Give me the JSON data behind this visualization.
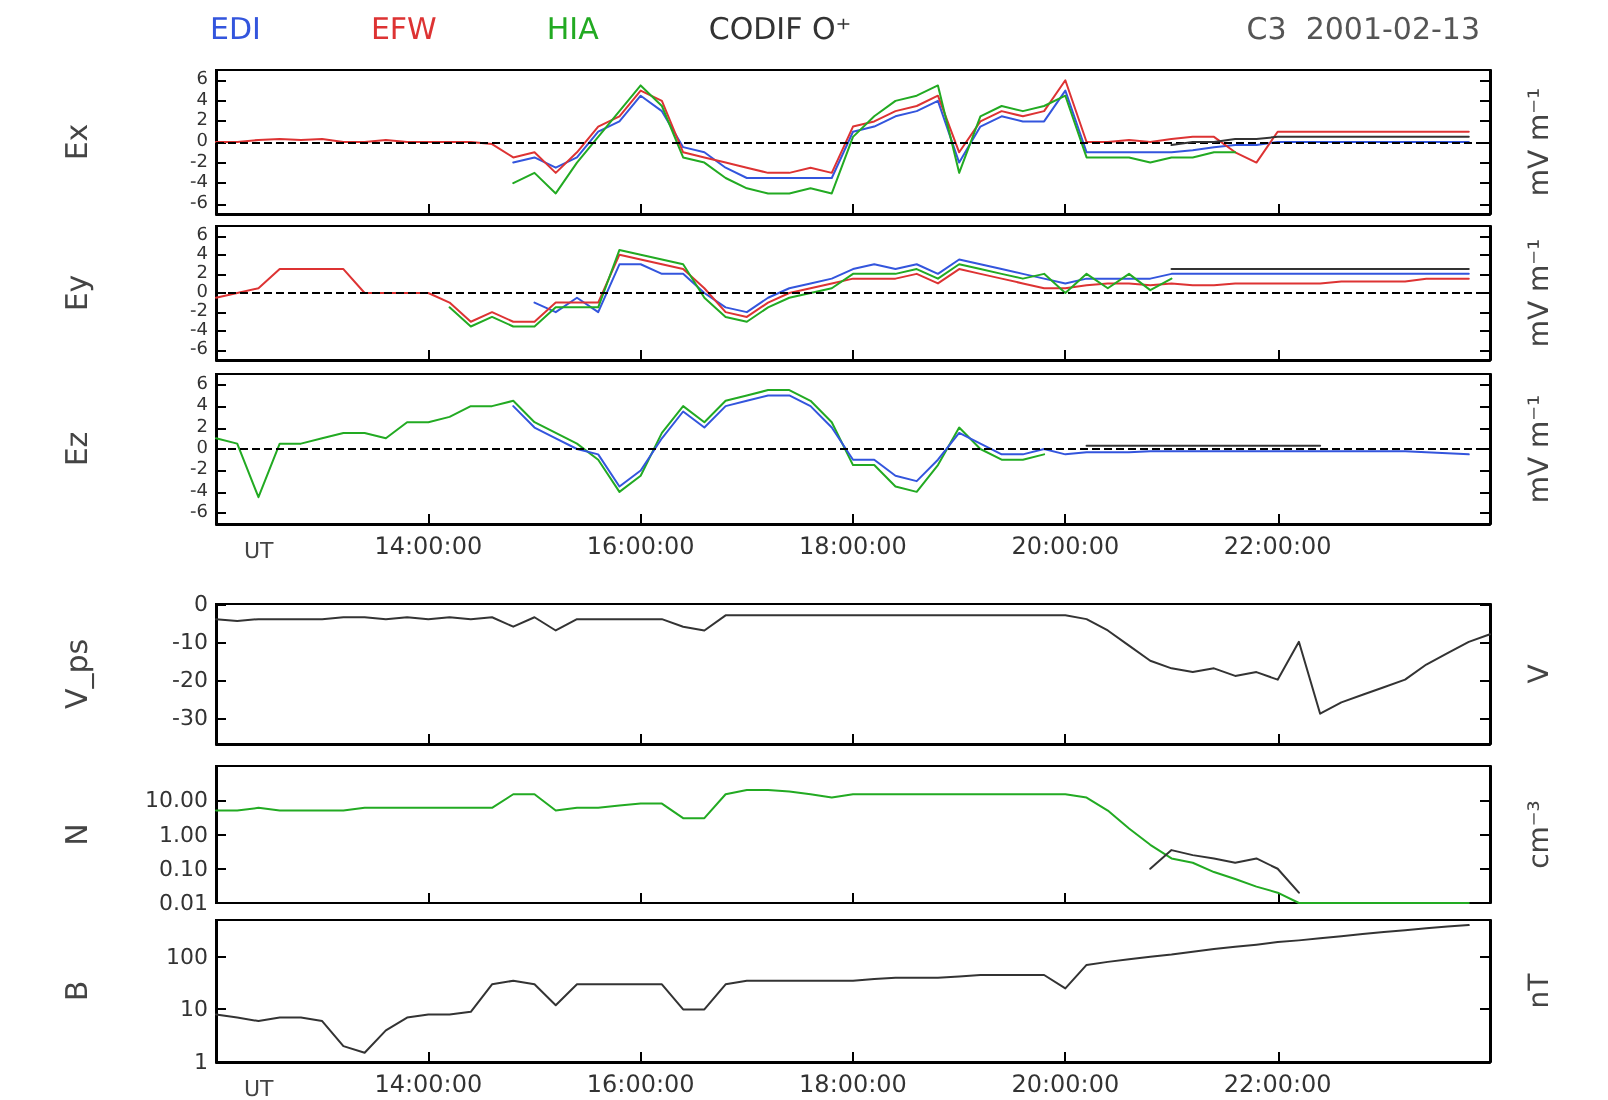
{
  "chart_data": [
    {
      "type": "line",
      "title": "C3  2001-02-13",
      "ylabel": "Ex",
      "y2label": "mV m⁻¹",
      "legend": "top",
      "tick_labels": "y",
      "xlim": [
        12,
        24
      ],
      "ylim": [
        -7,
        7
      ],
      "xticks": [
        14,
        16,
        18,
        20,
        22
      ],
      "yticks": [
        -6,
        -4,
        -2,
        0,
        2,
        4,
        6
      ],
      "ref_lines": [
        {
          "axis": "y",
          "value": 0,
          "color": "#000000",
          "line_style": "dashed"
        }
      ],
      "x": [
        12,
        12.2,
        12.4,
        12.6,
        12.8,
        13,
        13.2,
        13.4,
        13.6,
        13.8,
        14,
        14.2,
        14.4,
        14.6,
        14.8,
        15,
        15.2,
        15.4,
        15.6,
        15.8,
        16,
        16.2,
        16.4,
        16.6,
        16.8,
        17,
        17.2,
        17.4,
        17.6,
        17.8,
        18,
        18.2,
        18.4,
        18.6,
        18.8,
        19,
        19.2,
        19.4,
        19.6,
        19.8,
        20,
        20.2,
        20.4,
        20.6,
        20.8,
        21,
        21.2,
        21.4,
        21.6,
        21.8,
        22,
        22.2,
        22.4,
        22.6,
        22.8,
        23,
        23.2,
        23.4,
        23.6,
        23.8
      ],
      "series": [
        {
          "name": "EDI",
          "color": "#3355dd",
          "values": [
            null,
            null,
            null,
            null,
            null,
            null,
            null,
            null,
            null,
            null,
            null,
            null,
            null,
            null,
            -2,
            -1.5,
            -2.5,
            -1.5,
            1,
            2,
            4.5,
            3,
            -0.5,
            -1,
            -2.5,
            -3.5,
            -3.5,
            -3.5,
            -3.5,
            -3.5,
            1,
            1.5,
            2.5,
            3,
            4,
            -2,
            1.5,
            2.5,
            2,
            2,
            5,
            -1,
            -1,
            -1,
            -1,
            -1,
            -0.8,
            -0.5,
            -0.3,
            -0.3,
            0,
            0,
            0,
            0,
            0,
            0,
            0,
            0,
            0,
            0
          ]
        },
        {
          "name": "EFW",
          "color": "#dd3333",
          "values": [
            0,
            0,
            0.2,
            0.3,
            0.2,
            0.3,
            0,
            0,
            0.2,
            0,
            0,
            0,
            0,
            -0.2,
            -1.5,
            -1,
            -3,
            -1,
            1.5,
            2.5,
            5,
            4,
            -1,
            -1.5,
            -2,
            -2.5,
            -3,
            -3,
            -2.5,
            -3,
            1.5,
            2,
            3,
            3.5,
            4.5,
            -1,
            2,
            3,
            2.5,
            3,
            6,
            0,
            0,
            0.2,
            0,
            0.3,
            0.5,
            0.5,
            -1,
            -2,
            1,
            1,
            1,
            1,
            1,
            1,
            1,
            1,
            1,
            1
          ]
        },
        {
          "name": "HIA",
          "color": "#22aa22",
          "values": [
            null,
            null,
            null,
            null,
            null,
            null,
            null,
            null,
            null,
            null,
            null,
            null,
            null,
            null,
            -4,
            -3,
            -5,
            -2,
            0.5,
            3,
            5.5,
            3.5,
            -1.5,
            -2,
            -3.5,
            -4.5,
            -5,
            -5,
            -4.5,
            -5,
            0.5,
            2.5,
            4,
            4.5,
            5.5,
            -3,
            2.5,
            3.5,
            3,
            3.5,
            4.5,
            -1.5,
            -1.5,
            -1.5,
            -2,
            -1.5,
            -1.5,
            -1,
            -1,
            null,
            null,
            null,
            null,
            null,
            null,
            null,
            null,
            null,
            null,
            null
          ]
        },
        {
          "name": "CODIF O⁺",
          "color": "#333333",
          "values": [
            null,
            null,
            null,
            null,
            null,
            null,
            null,
            null,
            null,
            null,
            null,
            null,
            null,
            null,
            null,
            null,
            null,
            null,
            null,
            null,
            null,
            null,
            null,
            null,
            null,
            null,
            null,
            null,
            null,
            null,
            null,
            null,
            null,
            null,
            null,
            null,
            null,
            null,
            null,
            null,
            null,
            null,
            null,
            null,
            null,
            -0.3,
            0,
            0,
            0.3,
            0.3,
            0.5,
            0.5,
            0.5,
            0.5,
            0.5,
            0.5,
            0.5,
            0.5,
            0.5,
            0.5
          ]
        }
      ]
    },
    {
      "type": "line",
      "ylabel": "Ey",
      "y2label": "mV m⁻¹",
      "tick_labels": "y",
      "xlim": [
        12,
        24
      ],
      "ylim": [
        -7,
        7
      ],
      "xticks": [
        14,
        16,
        18,
        20,
        22
      ],
      "yticks": [
        -6,
        -4,
        -2,
        0,
        2,
        4,
        6
      ],
      "ref_lines": [
        {
          "axis": "y",
          "value": 0,
          "color": "#000000",
          "line_style": "dashed"
        }
      ],
      "x": [
        12,
        12.2,
        12.4,
        12.6,
        12.8,
        13,
        13.2,
        13.4,
        13.6,
        13.8,
        14,
        14.2,
        14.4,
        14.6,
        14.8,
        15,
        15.2,
        15.4,
        15.6,
        15.8,
        16,
        16.2,
        16.4,
        16.6,
        16.8,
        17,
        17.2,
        17.4,
        17.6,
        17.8,
        18,
        18.2,
        18.4,
        18.6,
        18.8,
        19,
        19.2,
        19.4,
        19.6,
        19.8,
        20,
        20.2,
        20.4,
        20.6,
        20.8,
        21,
        21.2,
        21.4,
        21.6,
        21.8,
        22,
        22.2,
        22.4,
        22.6,
        22.8,
        23,
        23.2,
        23.4,
        23.6,
        23.8
      ],
      "series": [
        {
          "color": "#3355dd",
          "values": [
            null,
            null,
            null,
            null,
            null,
            null,
            null,
            null,
            null,
            null,
            null,
            null,
            null,
            null,
            null,
            -1,
            -2,
            -0.5,
            -2,
            3,
            3,
            2,
            2,
            0,
            -1.5,
            -2,
            -0.5,
            0.5,
            1,
            1.5,
            2.5,
            3,
            2.5,
            3,
            2,
            3.5,
            3,
            2.5,
            2,
            1.5,
            1,
            1.5,
            1.5,
            1.5,
            1.5,
            2,
            2,
            2,
            2,
            2,
            2,
            2,
            2,
            2,
            2,
            2,
            2,
            2,
            2,
            2
          ]
        },
        {
          "color": "#dd3333",
          "values": [
            -0.5,
            0,
            0.5,
            2.5,
            2.5,
            2.5,
            2.5,
            0,
            0,
            0,
            0,
            -1,
            -3,
            -2,
            -3,
            -3,
            -1,
            -1,
            -1,
            4,
            3.5,
            3,
            2.5,
            0.5,
            -2,
            -2.5,
            -1,
            0,
            0.5,
            1,
            1.5,
            1.5,
            1.5,
            2,
            1,
            2.5,
            2,
            1.5,
            1,
            0.5,
            0.5,
            0.8,
            1,
            1,
            0.8,
            1,
            0.8,
            0.8,
            1,
            1,
            1,
            1,
            1,
            1.2,
            1.2,
            1.2,
            1.2,
            1.5,
            1.5,
            1.5
          ]
        },
        {
          "color": "#22aa22",
          "values": [
            null,
            null,
            null,
            null,
            null,
            null,
            null,
            null,
            null,
            null,
            null,
            -1.5,
            -3.5,
            -2.5,
            -3.5,
            -3.5,
            -1.5,
            -1.5,
            -1.5,
            4.5,
            4,
            3.5,
            3,
            -0.5,
            -2.5,
            -3,
            -1.5,
            -0.5,
            0,
            0.5,
            2,
            2,
            2,
            2.5,
            1.5,
            3,
            2.5,
            2,
            1.5,
            2,
            0,
            2,
            0.5,
            2,
            0.3,
            1.5,
            null,
            null,
            null,
            null,
            null,
            null,
            null,
            null,
            null,
            null,
            null,
            null,
            null,
            null
          ]
        },
        {
          "color": "#333333",
          "values": [
            null,
            null,
            null,
            null,
            null,
            null,
            null,
            null,
            null,
            null,
            null,
            null,
            null,
            null,
            null,
            null,
            null,
            null,
            null,
            null,
            null,
            null,
            null,
            null,
            null,
            null,
            null,
            null,
            null,
            null,
            null,
            null,
            null,
            null,
            null,
            null,
            null,
            null,
            null,
            null,
            null,
            null,
            null,
            null,
            null,
            2.5,
            2.5,
            2.5,
            2.5,
            2.5,
            2.5,
            2.5,
            2.5,
            2.5,
            2.5,
            2.5,
            2.5,
            2.5,
            2.5,
            2.5
          ]
        }
      ]
    },
    {
      "type": "line",
      "ylabel": "Ez",
      "y2label": "mV m⁻¹",
      "xlabel": "UT",
      "xlim": [
        12,
        24
      ],
      "ylim": [
        -7,
        7
      ],
      "xticks": [
        {
          "value": 14,
          "label": "14:00:00"
        },
        {
          "value": 16,
          "label": "16:00:00"
        },
        {
          "value": 18,
          "label": "18:00:00"
        },
        {
          "value": 20,
          "label": "20:00:00"
        },
        {
          "value": 22,
          "label": "22:00:00"
        }
      ],
      "yticks": [
        -6,
        -4,
        -2,
        0,
        2,
        4,
        6
      ],
      "ref_lines": [
        {
          "axis": "y",
          "value": 0,
          "color": "#000000",
          "line_style": "dashed"
        }
      ],
      "x": [
        12,
        12.2,
        12.4,
        12.6,
        12.8,
        13,
        13.2,
        13.4,
        13.6,
        13.8,
        14,
        14.2,
        14.4,
        14.6,
        14.8,
        15,
        15.2,
        15.4,
        15.6,
        15.8,
        16,
        16.2,
        16.4,
        16.6,
        16.8,
        17,
        17.2,
        17.4,
        17.6,
        17.8,
        18,
        18.2,
        18.4,
        18.6,
        18.8,
        19,
        19.2,
        19.4,
        19.6,
        19.8,
        20,
        20.2,
        20.4,
        20.6,
        20.8,
        21,
        21.2,
        21.4,
        21.6,
        21.8,
        22,
        22.2,
        22.4,
        22.6,
        22.8,
        23,
        23.2,
        23.4,
        23.6,
        23.8
      ],
      "series": [
        {
          "color": "#22aa22",
          "values": [
            1,
            0.5,
            -4.5,
            0.5,
            0.5,
            1,
            1.5,
            1.5,
            1,
            2.5,
            2.5,
            3,
            4,
            4,
            4.5,
            2.5,
            1.5,
            0.5,
            -1,
            -4,
            -2.5,
            1.5,
            4,
            2.5,
            4.5,
            5,
            5.5,
            5.5,
            4.5,
            2.5,
            -1.5,
            -1.5,
            -3.5,
            -4,
            -1.5,
            2,
            0,
            -1,
            -1,
            -0.5,
            null,
            null,
            null,
            null,
            null,
            null,
            null,
            null,
            null,
            null,
            null,
            null,
            null,
            null,
            null,
            null,
            null,
            null,
            null,
            null
          ]
        },
        {
          "color": "#3355dd",
          "values": [
            null,
            null,
            null,
            null,
            null,
            null,
            null,
            null,
            null,
            null,
            null,
            null,
            null,
            null,
            4,
            2,
            1,
            0,
            -0.5,
            -3.5,
            -2,
            1,
            3.5,
            2,
            4,
            4.5,
            5,
            5,
            4,
            2,
            -1,
            -1,
            -2.5,
            -3,
            -1,
            1.5,
            0.5,
            -0.5,
            -0.5,
            0,
            -0.5,
            -0.3,
            -0.3,
            -0.3,
            -0.2,
            -0.2,
            -0.2,
            -0.2,
            -0.2,
            -0.2,
            -0.2,
            -0.2,
            -0.2,
            -0.2,
            -0.2,
            -0.2,
            -0.2,
            -0.3,
            -0.4,
            -0.5
          ]
        },
        {
          "color": "#333333",
          "values": [
            null,
            null,
            null,
            null,
            null,
            null,
            null,
            null,
            null,
            null,
            null,
            null,
            null,
            null,
            null,
            null,
            null,
            null,
            null,
            null,
            null,
            null,
            null,
            null,
            null,
            null,
            null,
            null,
            null,
            null,
            null,
            null,
            null,
            null,
            null,
            null,
            null,
            null,
            null,
            null,
            null,
            0.3,
            0.3,
            0.3,
            0.3,
            0.3,
            0.3,
            0.3,
            0.3,
            0.3,
            0.3,
            0.3,
            0.3,
            null,
            null,
            null,
            null,
            null,
            null,
            null
          ]
        }
      ]
    },
    {
      "type": "line",
      "ylabel": "V_ps",
      "y2label": "V",
      "tick_labels": "y",
      "xlim": [
        12,
        24
      ],
      "ylim": [
        -37,
        0
      ],
      "xticks": [
        14,
        16,
        18,
        20,
        22
      ],
      "yticks": [
        -30,
        -20,
        -10,
        0
      ],
      "x": [
        12,
        12.2,
        12.4,
        12.6,
        12.8,
        13,
        13.2,
        13.4,
        13.6,
        13.8,
        14,
        14.2,
        14.4,
        14.6,
        14.8,
        15,
        15.2,
        15.4,
        15.6,
        15.8,
        16,
        16.2,
        16.4,
        16.6,
        16.8,
        17,
        17.2,
        17.4,
        17.6,
        17.8,
        18,
        18.2,
        18.4,
        18.6,
        18.8,
        19,
        19.2,
        19.4,
        19.6,
        19.8,
        20,
        20.2,
        20.4,
        20.6,
        20.8,
        21,
        21.2,
        21.4,
        21.6,
        21.8,
        22,
        22.2,
        22.4,
        22.6,
        22.8,
        23,
        23.2,
        23.4,
        23.6,
        23.8,
        24
      ],
      "series": [
        {
          "color": "#333333",
          "values": [
            -4,
            -4.5,
            -4,
            -4,
            -4,
            -4,
            -3.5,
            -3.5,
            -4,
            -3.5,
            -4,
            -3.5,
            -4,
            -3.5,
            -6,
            -3.5,
            -7,
            -4,
            -4,
            -4,
            -4,
            -4,
            -6,
            -7,
            -3,
            -3,
            -3,
            -3,
            -3,
            -3,
            -3,
            -3,
            -3,
            -3,
            -3,
            -3,
            -3,
            -3,
            -3,
            -3,
            -3,
            -4,
            -7,
            -11,
            -15,
            -17,
            -18,
            -17,
            -19,
            -18,
            -20,
            -10,
            -29,
            -26,
            -24,
            -22,
            -20,
            -16,
            -13,
            -10,
            -8
          ]
        }
      ]
    },
    {
      "type": "line",
      "ylabel": "N",
      "y2label": "cm⁻³",
      "tick_labels": "y",
      "log": "y",
      "xlim": [
        12,
        24
      ],
      "ylim": [
        0.01,
        100
      ],
      "xticks": [
        14,
        16,
        18,
        20,
        22
      ],
      "yticks": [
        {
          "value": 0.01,
          "label": "0.01"
        },
        {
          "value": 0.1,
          "label": "0.10"
        },
        {
          "value": 1,
          "label": "1.00"
        },
        {
          "value": 10,
          "label": "10.00"
        }
      ],
      "x": [
        12,
        12.2,
        12.4,
        12.6,
        12.8,
        13,
        13.2,
        13.4,
        13.6,
        13.8,
        14,
        14.2,
        14.4,
        14.6,
        14.8,
        15,
        15.2,
        15.4,
        15.6,
        15.8,
        16,
        16.2,
        16.4,
        16.6,
        16.8,
        17,
        17.2,
        17.4,
        17.6,
        17.8,
        18,
        18.2,
        18.4,
        18.6,
        18.8,
        19,
        19.2,
        19.4,
        19.6,
        19.8,
        20,
        20.2,
        20.4,
        20.6,
        20.8,
        21,
        21.2,
        21.4,
        21.6,
        21.8,
        22,
        22.2,
        22.4,
        22.6,
        22.8,
        23,
        23.2,
        23.4,
        23.6,
        23.8
      ],
      "series": [
        {
          "color": "#22aa22",
          "values": [
            5,
            5,
            6,
            5,
            5,
            5,
            5,
            6,
            6,
            6,
            6,
            6,
            6,
            6,
            15,
            15,
            5,
            6,
            6,
            7,
            8,
            8,
            3,
            3,
            15,
            20,
            20,
            18,
            15,
            12,
            15,
            15,
            15,
            15,
            15,
            15,
            15,
            15,
            15,
            15,
            15,
            12,
            5,
            1.5,
            0.5,
            0.2,
            0.15,
            0.08,
            0.05,
            0.03,
            0.02,
            0.01,
            0.01,
            0.01,
            0.01,
            0.01,
            0.01,
            0.01,
            0.01,
            0.01
          ]
        },
        {
          "color": "#333333",
          "values": [
            null,
            null,
            null,
            null,
            null,
            null,
            null,
            null,
            null,
            null,
            null,
            null,
            null,
            null,
            null,
            null,
            null,
            null,
            null,
            null,
            null,
            null,
            null,
            null,
            null,
            null,
            null,
            null,
            null,
            null,
            null,
            null,
            null,
            null,
            null,
            null,
            null,
            null,
            null,
            null,
            null,
            null,
            null,
            null,
            0.1,
            0.35,
            0.25,
            0.2,
            0.15,
            0.2,
            0.1,
            0.02,
            null,
            null,
            null,
            null,
            null,
            null,
            null,
            null
          ]
        }
      ]
    },
    {
      "type": "line",
      "ylabel": "B",
      "y2label": "nT",
      "xlabel": "UT",
      "log": "y",
      "xlim": [
        12,
        24
      ],
      "ylim": [
        1,
        500
      ],
      "xticks": [
        {
          "value": 14,
          "label": "14:00:00"
        },
        {
          "value": 16,
          "label": "16:00:00"
        },
        {
          "value": 18,
          "label": "18:00:00"
        },
        {
          "value": 20,
          "label": "20:00:00"
        },
        {
          "value": 22,
          "label": "22:00:00"
        }
      ],
      "yticks": [
        1,
        10,
        100
      ],
      "x": [
        12,
        12.2,
        12.4,
        12.6,
        12.8,
        13,
        13.2,
        13.4,
        13.6,
        13.8,
        14,
        14.2,
        14.4,
        14.6,
        14.8,
        15,
        15.2,
        15.4,
        15.6,
        15.8,
        16,
        16.2,
        16.4,
        16.6,
        16.8,
        17,
        17.2,
        17.4,
        17.6,
        17.8,
        18,
        18.2,
        18.4,
        18.6,
        18.8,
        19,
        19.2,
        19.4,
        19.6,
        19.8,
        20,
        20.2,
        20.4,
        20.6,
        20.8,
        21,
        21.2,
        21.4,
        21.6,
        21.8,
        22,
        22.2,
        22.4,
        22.6,
        22.8,
        23,
        23.2,
        23.4,
        23.6,
        23.8
      ],
      "series": [
        {
          "color": "#333333",
          "values": [
            8,
            7,
            6,
            7,
            7,
            6,
            2,
            1.5,
            4,
            7,
            8,
            8,
            9,
            30,
            35,
            30,
            12,
            30,
            30,
            30,
            30,
            30,
            10,
            10,
            30,
            35,
            35,
            35,
            35,
            35,
            35,
            38,
            40,
            40,
            40,
            42,
            45,
            45,
            45,
            45,
            25,
            70,
            80,
            90,
            100,
            110,
            125,
            140,
            155,
            170,
            190,
            205,
            225,
            245,
            270,
            295,
            320,
            350,
            375,
            400
          ]
        }
      ]
    }
  ]
}
